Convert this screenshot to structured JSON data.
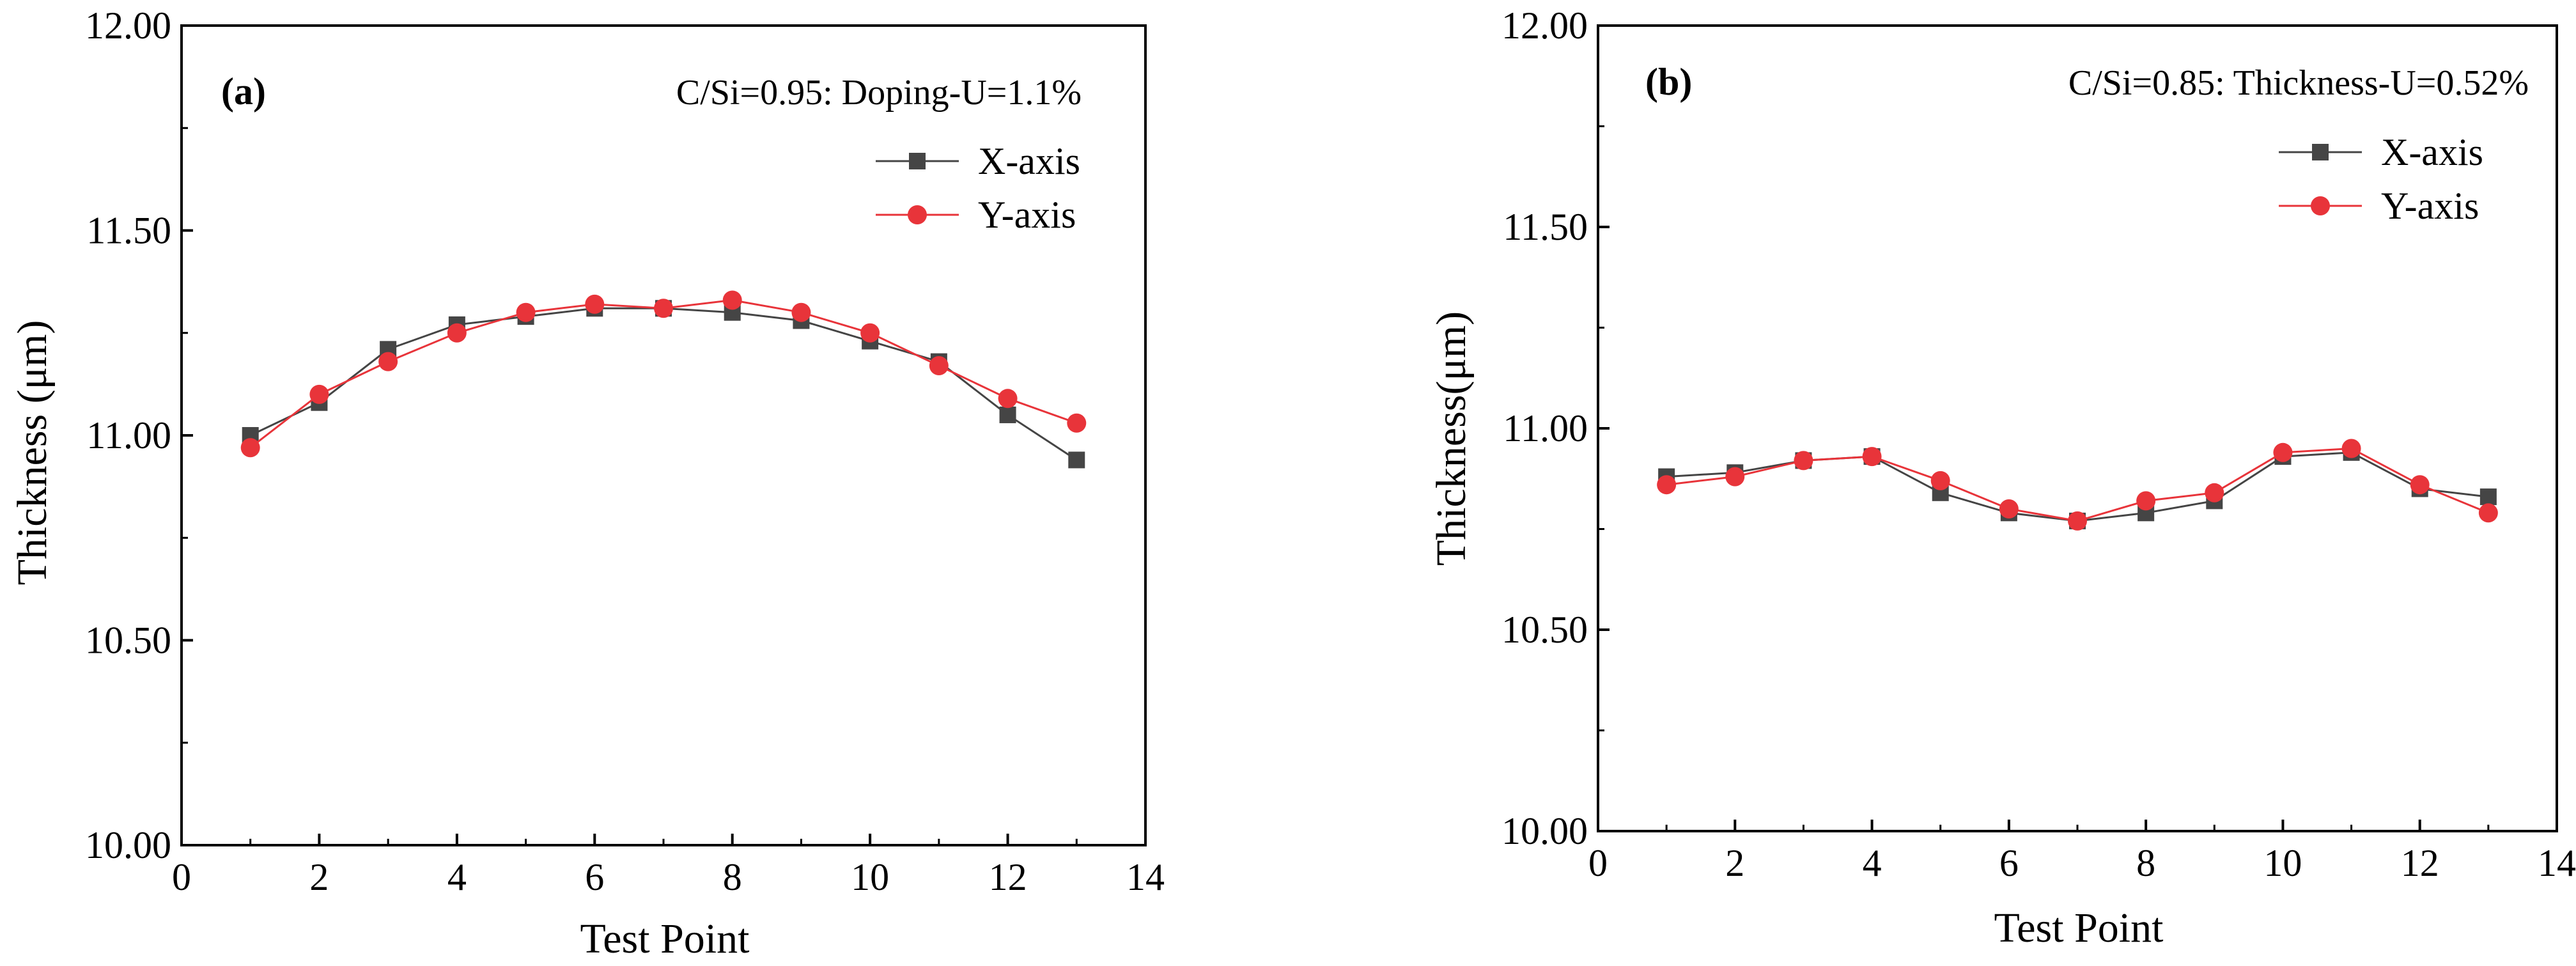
{
  "chart_data": [
    {
      "type": "line",
      "panel": "(a)",
      "annotation": "C/Si=0.95: Doping-U=1.1%",
      "xlabel": "Test Point",
      "ylabel": "Thickness (μm)",
      "xlim": [
        0,
        14
      ],
      "ylim": [
        10.0,
        12.0
      ],
      "xticks": [
        0,
        2,
        4,
        6,
        8,
        10,
        12,
        14
      ],
      "xtick_labels": [
        "0",
        "2",
        "4",
        "6",
        "8",
        "10",
        "12",
        "14"
      ],
      "yticks": [
        10.0,
        10.5,
        11.0,
        11.5,
        12.0
      ],
      "ytick_labels": [
        "10.00",
        "10.50",
        "11.00",
        "11.50",
        "12.00"
      ],
      "legend_position": "top-right",
      "x": [
        1,
        2,
        3,
        4,
        5,
        6,
        7,
        8,
        9,
        10,
        11,
        12,
        13
      ],
      "series": [
        {
          "name": "X-axis",
          "color": "#454545",
          "marker": "square",
          "values": [
            11.0,
            11.08,
            11.21,
            11.27,
            11.29,
            11.31,
            11.31,
            11.3,
            11.28,
            11.23,
            11.18,
            11.05,
            10.94
          ]
        },
        {
          "name": "Y-axis",
          "color": "#e8343a",
          "marker": "circle",
          "values": [
            10.97,
            11.1,
            11.18,
            11.25,
            11.3,
            11.32,
            11.31,
            11.33,
            11.3,
            11.25,
            11.17,
            11.09,
            11.03
          ]
        }
      ]
    },
    {
      "type": "line",
      "panel": "(b)",
      "annotation": "C/Si=0.85: Thickness-U=0.52%",
      "xlabel": "Test Point",
      "ylabel": "Thickness(μm)",
      "xlim": [
        0,
        14
      ],
      "ylim": [
        10.0,
        12.0
      ],
      "xticks": [
        0,
        2,
        4,
        6,
        8,
        10,
        12,
        14
      ],
      "xtick_labels": [
        "0",
        "2",
        "4",
        "6",
        "8",
        "10",
        "12",
        "14"
      ],
      "yticks": [
        10.0,
        10.5,
        11.0,
        11.5,
        12.0
      ],
      "ytick_labels": [
        "10.00",
        "10.50",
        "11.00",
        "11.50",
        "12.00"
      ],
      "legend_position": "top-right",
      "x": [
        1,
        2,
        3,
        4,
        5,
        6,
        7,
        8,
        9,
        10,
        11,
        12,
        13
      ],
      "series": [
        {
          "name": "X-axis",
          "color": "#454545",
          "marker": "square",
          "values": [
            10.88,
            10.89,
            10.92,
            10.93,
            10.84,
            10.79,
            10.77,
            10.79,
            10.82,
            10.93,
            10.94,
            10.85,
            10.83
          ]
        },
        {
          "name": "Y-axis",
          "color": "#e8343a",
          "marker": "circle",
          "values": [
            10.86,
            10.88,
            10.92,
            10.93,
            10.87,
            10.8,
            10.77,
            10.82,
            10.84,
            10.94,
            10.95,
            10.86,
            10.79
          ]
        }
      ]
    }
  ]
}
